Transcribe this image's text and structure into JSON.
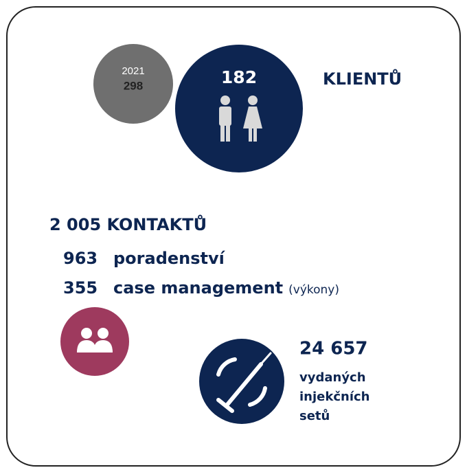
{
  "clients": {
    "previous_year": "2021",
    "previous_count": "298",
    "count": "182",
    "label": "KLIENTŮ"
  },
  "contacts": {
    "total": "2 005 KONTAKTŮ",
    "items": [
      {
        "count": "963",
        "label": "poradenství"
      },
      {
        "count": "355",
        "label": "case management",
        "note": "(výkony)"
      }
    ]
  },
  "sets": {
    "count": "24 657",
    "lines": [
      "vydaných",
      "injekčních",
      "setů"
    ]
  }
}
